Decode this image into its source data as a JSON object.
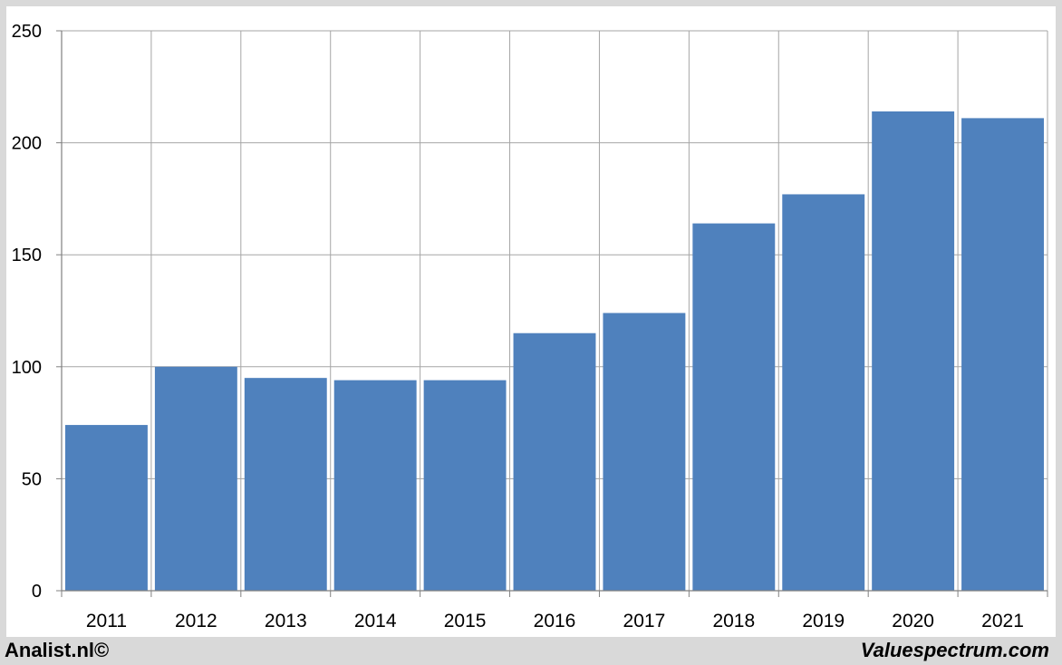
{
  "footer": {
    "left_label": "Analist.nl©",
    "right_label": "Valuespectrum.com"
  },
  "colors": {
    "bar": "#4f81bd",
    "grid": "#a6a6a6",
    "plot_background": "#ffffff",
    "outer_background": "#d9d9d9"
  },
  "chart_data": {
    "type": "bar",
    "categories": [
      "2011",
      "2012",
      "2013",
      "2014",
      "2015",
      "2016",
      "2017",
      "2018",
      "2019",
      "2020",
      "2021"
    ],
    "values": [
      74,
      100,
      95,
      94,
      94,
      115,
      124,
      164,
      177,
      214,
      211
    ],
    "ylim": [
      0,
      250
    ],
    "yticks": [
      0,
      50,
      100,
      150,
      200,
      250
    ],
    "grid": true
  }
}
